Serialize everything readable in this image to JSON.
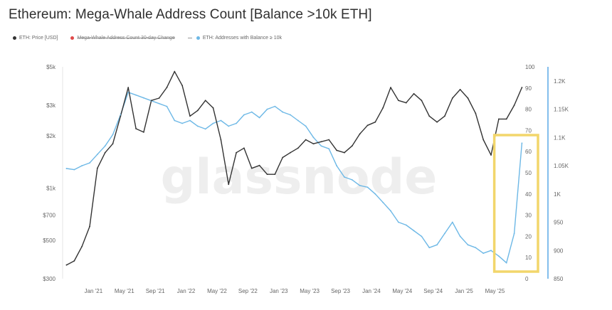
{
  "title": "Ethereum: Mega-Whale Address Count [Balance >10k ETH]",
  "legend": {
    "items": [
      {
        "label": "ETH: Price [USD]",
        "color": "#333333",
        "style": "dot"
      },
      {
        "label": "Mega-Whale Address Count 30-day Change",
        "color": "#e04a4a",
        "style": "dot-strike"
      },
      {
        "label": "ETH: Addresses with Balance ≥ 10k",
        "color": "#6db8e6",
        "style": "dot"
      }
    ]
  },
  "watermark": "glassnode",
  "colors": {
    "price": "#333333",
    "addresses": "#6db8e6",
    "highlight": "#f2d66b",
    "right_axis_line": "#5aa9e6",
    "grid": "#f0f0f0"
  },
  "chart_data": {
    "type": "line",
    "title": "Ethereum: Mega-Whale Address Count [Balance >10k ETH]",
    "x_tick_labels": [
      "Jan '21",
      "May '21",
      "Sep '21",
      "Jan '22",
      "May '22",
      "Sep '22",
      "Jan '23",
      "May '23",
      "Sep '23",
      "Jan '24",
      "May '24",
      "Sep '24",
      "Jan '25",
      "May '25"
    ],
    "x_range": [
      "2020-09",
      "2025-08"
    ],
    "axes": {
      "left": {
        "scale": "log",
        "range": [
          300,
          5000
        ],
        "tick_labels": [
          "$300",
          "$500",
          "$700",
          "$1k",
          "$2k",
          "$3k",
          "$5k"
        ],
        "tick_values": [
          300,
          500,
          700,
          1000,
          2000,
          3000,
          5000
        ]
      },
      "middle": {
        "scale": "linear",
        "range": [
          0,
          100
        ],
        "tick_labels": [
          "0",
          "10",
          "20",
          "30",
          "40",
          "50",
          "60",
          "70",
          "80",
          "90",
          "100"
        ],
        "tick_values": [
          0,
          10,
          20,
          30,
          40,
          50,
          60,
          70,
          80,
          90,
          100
        ]
      },
      "right": {
        "scale": "linear",
        "range": [
          850,
          1225
        ],
        "tick_labels": [
          "850",
          "900",
          "950",
          "1K",
          "1.05K",
          "1.1K",
          "1.15K",
          "1.2K"
        ],
        "tick_values": [
          850,
          900,
          950,
          1000,
          1050,
          1100,
          1150,
          1200
        ]
      }
    },
    "series": [
      {
        "name": "ETH: Price [USD]",
        "axis": "left",
        "points": [
          [
            "2020-09",
            360
          ],
          [
            "2020-10",
            380
          ],
          [
            "2020-11",
            460
          ],
          [
            "2020-12",
            600
          ],
          [
            "2021-01",
            1300
          ],
          [
            "2021-02",
            1600
          ],
          [
            "2021-03",
            1800
          ],
          [
            "2021-04",
            2600
          ],
          [
            "2021-05",
            3800
          ],
          [
            "2021-06",
            2200
          ],
          [
            "2021-07",
            2100
          ],
          [
            "2021-08",
            3200
          ],
          [
            "2021-09",
            3300
          ],
          [
            "2021-10",
            3800
          ],
          [
            "2021-11",
            4700
          ],
          [
            "2021-12",
            3900
          ],
          [
            "2022-01",
            2600
          ],
          [
            "2022-02",
            2800
          ],
          [
            "2022-03",
            3200
          ],
          [
            "2022-04",
            2900
          ],
          [
            "2022-05",
            1900
          ],
          [
            "2022-06",
            1050
          ],
          [
            "2022-07",
            1600
          ],
          [
            "2022-08",
            1700
          ],
          [
            "2022-09",
            1300
          ],
          [
            "2022-10",
            1350
          ],
          [
            "2022-11",
            1200
          ],
          [
            "2022-12",
            1200
          ],
          [
            "2023-01",
            1500
          ],
          [
            "2023-02",
            1600
          ],
          [
            "2023-03",
            1700
          ],
          [
            "2023-04",
            1900
          ],
          [
            "2023-05",
            1800
          ],
          [
            "2023-06",
            1850
          ],
          [
            "2023-07",
            1900
          ],
          [
            "2023-08",
            1650
          ],
          [
            "2023-09",
            1600
          ],
          [
            "2023-10",
            1750
          ],
          [
            "2023-11",
            2050
          ],
          [
            "2023-12",
            2300
          ],
          [
            "2024-01",
            2400
          ],
          [
            "2024-02",
            2900
          ],
          [
            "2024-03",
            3800
          ],
          [
            "2024-04",
            3200
          ],
          [
            "2024-05",
            3100
          ],
          [
            "2024-06",
            3500
          ],
          [
            "2024-07",
            3200
          ],
          [
            "2024-08",
            2600
          ],
          [
            "2024-09",
            2400
          ],
          [
            "2024-10",
            2600
          ],
          [
            "2024-11",
            3300
          ],
          [
            "2024-12",
            3700
          ],
          [
            "2025-01",
            3300
          ],
          [
            "2025-02",
            2700
          ],
          [
            "2025-03",
            1900
          ],
          [
            "2025-04",
            1550
          ],
          [
            "2025-05",
            2500
          ],
          [
            "2025-06",
            2500
          ],
          [
            "2025-07",
            3000
          ],
          [
            "2025-08",
            3800
          ]
        ]
      },
      {
        "name": "ETH: Addresses with Balance ≥ 10k",
        "axis": "right",
        "points": [
          [
            "2020-09",
            1045
          ],
          [
            "2020-10",
            1043
          ],
          [
            "2020-11",
            1050
          ],
          [
            "2020-12",
            1055
          ],
          [
            "2021-01",
            1070
          ],
          [
            "2021-02",
            1085
          ],
          [
            "2021-03",
            1105
          ],
          [
            "2021-04",
            1140
          ],
          [
            "2021-05",
            1180
          ],
          [
            "2021-06",
            1175
          ],
          [
            "2021-07",
            1170
          ],
          [
            "2021-08",
            1165
          ],
          [
            "2021-09",
            1160
          ],
          [
            "2021-10",
            1155
          ],
          [
            "2021-11",
            1130
          ],
          [
            "2021-12",
            1125
          ],
          [
            "2022-01",
            1130
          ],
          [
            "2022-02",
            1120
          ],
          [
            "2022-03",
            1115
          ],
          [
            "2022-04",
            1125
          ],
          [
            "2022-05",
            1130
          ],
          [
            "2022-06",
            1120
          ],
          [
            "2022-07",
            1125
          ],
          [
            "2022-08",
            1140
          ],
          [
            "2022-09",
            1145
          ],
          [
            "2022-10",
            1135
          ],
          [
            "2022-11",
            1150
          ],
          [
            "2022-12",
            1155
          ],
          [
            "2023-01",
            1145
          ],
          [
            "2023-02",
            1140
          ],
          [
            "2023-03",
            1130
          ],
          [
            "2023-04",
            1120
          ],
          [
            "2023-05",
            1100
          ],
          [
            "2023-06",
            1085
          ],
          [
            "2023-07",
            1080
          ],
          [
            "2023-08",
            1050
          ],
          [
            "2023-09",
            1030
          ],
          [
            "2023-10",
            1025
          ],
          [
            "2023-11",
            1015
          ],
          [
            "2023-12",
            1012
          ],
          [
            "2024-01",
            1000
          ],
          [
            "2024-02",
            985
          ],
          [
            "2024-03",
            970
          ],
          [
            "2024-04",
            950
          ],
          [
            "2024-05",
            945
          ],
          [
            "2024-06",
            935
          ],
          [
            "2024-07",
            925
          ],
          [
            "2024-08",
            905
          ],
          [
            "2024-09",
            910
          ],
          [
            "2024-10",
            930
          ],
          [
            "2024-11",
            950
          ],
          [
            "2024-12",
            925
          ],
          [
            "2025-01",
            910
          ],
          [
            "2025-02",
            905
          ],
          [
            "2025-03",
            895
          ],
          [
            "2025-04",
            900
          ],
          [
            "2025-05",
            890
          ],
          [
            "2025-06",
            878
          ],
          [
            "2025-07",
            930
          ],
          [
            "2025-08",
            1090
          ]
        ]
      }
    ],
    "highlight_box": {
      "x_range": [
        "2025-04",
        "2025-08"
      ],
      "label": ""
    },
    "grid": false,
    "legend_position": "top-left"
  }
}
